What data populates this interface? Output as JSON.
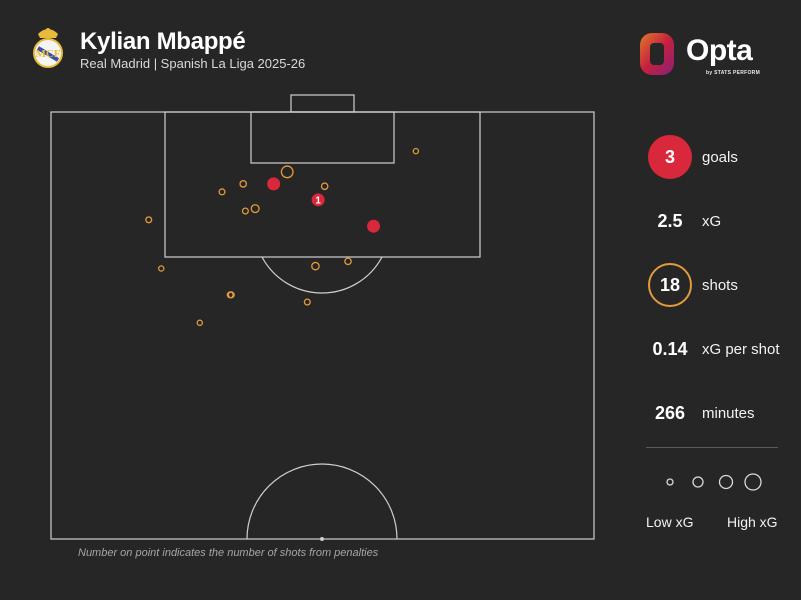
{
  "header": {
    "player": "Kylian Mbappé",
    "subtitle": "Real Madrid | Spanish La Liga 2025-26"
  },
  "branding": {
    "name": "Opta",
    "tagline": "by STATS PERFORM",
    "colors": [
      "#c4213d",
      "#e07a2a",
      "#8a1f7a"
    ]
  },
  "stats": {
    "goals_value": "3",
    "goals_label": "goals",
    "xg_value": "2.5",
    "xg_label": "xG",
    "shots_value": "18",
    "shots_label": "shots",
    "xg_per_shot_value": "0.14",
    "xg_per_shot_label": "xG per shot",
    "minutes_value": "266",
    "minutes_label": "minutes"
  },
  "legend": {
    "low_label": "Low xG",
    "high_label": "High xG"
  },
  "footnote": "Number on point indicates the number of shots from penalties",
  "colors": {
    "background": "#262626",
    "goal": "#d9273b",
    "shot": "#e39a3b",
    "lines": "#cfcfcf"
  },
  "chart_data": {
    "type": "scatter",
    "pitch": "half-pitch shot map, attacking toward top goal",
    "units": "x: 0-100 pitch width (left to right); y: metres from goal line",
    "shots": [
      {
        "x": 49.2,
        "y": 11,
        "xg": 0.79,
        "goal": true,
        "penalties": "1"
      },
      {
        "x": 41.0,
        "y": 9,
        "xg": 0.35,
        "goal": true
      },
      {
        "x": 59.4,
        "y": 14.3,
        "xg": 0.35,
        "goal": true
      },
      {
        "x": 43.5,
        "y": 7.5,
        "xg": 0.2,
        "goal": false
      },
      {
        "x": 50.4,
        "y": 9.3,
        "xg": 0.06,
        "goal": false
      },
      {
        "x": 35.4,
        "y": 9,
        "xg": 0.06,
        "goal": false
      },
      {
        "x": 31.5,
        "y": 10,
        "xg": 0.05,
        "goal": false
      },
      {
        "x": 37.6,
        "y": 12.1,
        "xg": 0.09,
        "goal": false
      },
      {
        "x": 35.8,
        "y": 12.4,
        "xg": 0.05,
        "goal": false
      },
      {
        "x": 67.2,
        "y": 4.9,
        "xg": 0.04,
        "goal": false
      },
      {
        "x": 18.0,
        "y": 13.5,
        "xg": 0.05,
        "goal": false
      },
      {
        "x": 48.7,
        "y": 19.3,
        "xg": 0.08,
        "goal": false
      },
      {
        "x": 54.7,
        "y": 18.7,
        "xg": 0.06,
        "goal": false
      },
      {
        "x": 20.3,
        "y": 19.6,
        "xg": 0.04,
        "goal": false
      },
      {
        "x": 33.0,
        "y": 22.9,
        "xg": 0.05,
        "goal": false
      },
      {
        "x": 33.2,
        "y": 22.9,
        "xg": 0.05,
        "goal": false
      },
      {
        "x": 47.2,
        "y": 23.8,
        "xg": 0.05,
        "goal": false
      },
      {
        "x": 27.4,
        "y": 26.4,
        "xg": 0.04,
        "goal": false
      }
    ]
  }
}
